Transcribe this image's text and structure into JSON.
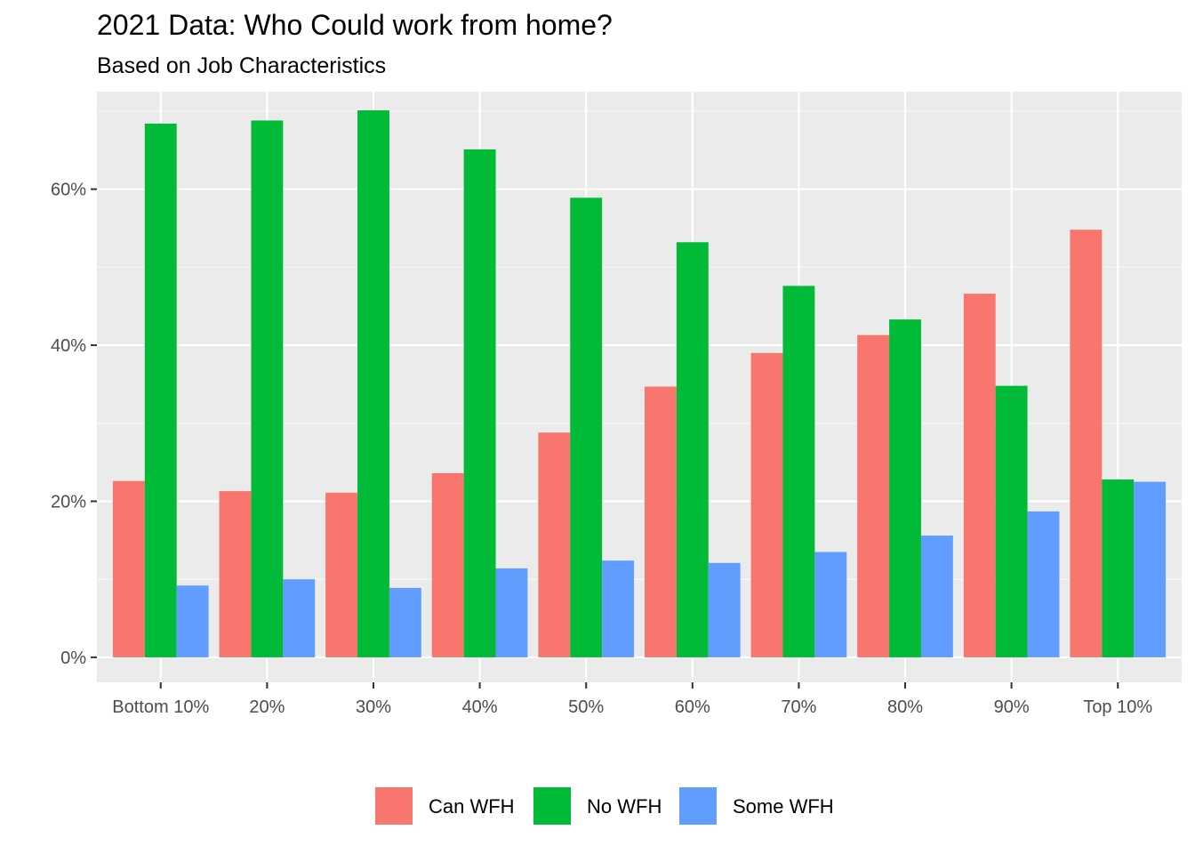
{
  "chart_data": {
    "type": "bar",
    "title": "2021 Data: Who Could work from home?",
    "subtitle": "Based on Job Characteristics",
    "xlabel": "",
    "ylabel": "",
    "categories": [
      "Bottom 10%",
      "20%",
      "30%",
      "40%",
      "50%",
      "60%",
      "70%",
      "80%",
      "90%",
      "Top 10%"
    ],
    "series": [
      {
        "name": "Can WFH",
        "color": "#F8766D",
        "values": [
          22.6,
          21.3,
          21.1,
          23.6,
          28.8,
          34.7,
          39.0,
          41.3,
          46.6,
          54.8
        ]
      },
      {
        "name": "No WFH",
        "color": "#00BA38",
        "values": [
          68.4,
          68.8,
          70.1,
          65.1,
          58.9,
          53.2,
          47.6,
          43.3,
          34.8,
          22.8
        ]
      },
      {
        "name": "Some WFH",
        "color": "#619CFF",
        "values": [
          9.2,
          10.0,
          8.9,
          11.4,
          12.4,
          12.1,
          13.5,
          15.6,
          18.7,
          22.5
        ]
      }
    ],
    "ylim": [
      -3.2,
      72.5
    ],
    "yticks": [
      0,
      20,
      40,
      60
    ],
    "ytick_labels": [
      "0%",
      "20%",
      "40%",
      "60%"
    ],
    "grid": true,
    "legend_position": "bottom"
  }
}
